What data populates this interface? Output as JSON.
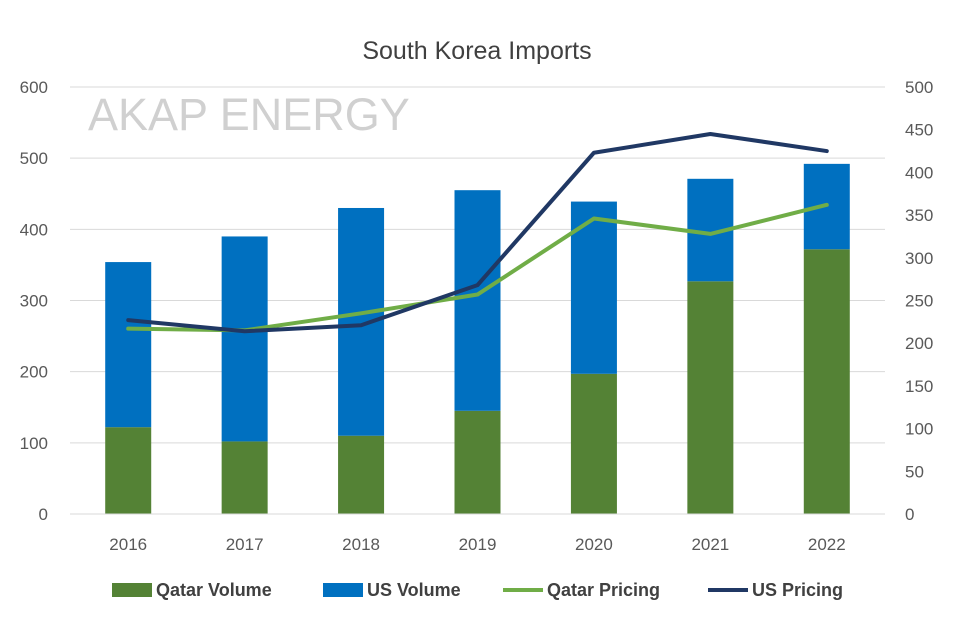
{
  "chart_data": {
    "type": "bar",
    "title": "South Korea Imports",
    "watermark": "AKAP ENERGY",
    "categories": [
      "2016",
      "2017",
      "2018",
      "2019",
      "2020",
      "2021",
      "2022"
    ],
    "ylim": [
      0,
      600
    ],
    "y_ticks": [
      "0",
      "100",
      "200",
      "300",
      "400",
      "500",
      "600"
    ],
    "y2lim": [
      0,
      500
    ],
    "y2_ticks": [
      "0",
      "50",
      "100",
      "150",
      "200",
      "250",
      "300",
      "350",
      "400",
      "450",
      "500"
    ],
    "bar_series": [
      {
        "name": "Qatar Volume",
        "color": "#548235",
        "values": [
          122,
          102,
          110,
          145,
          197,
          327,
          372
        ]
      },
      {
        "name": "US Volume",
        "color": "#0070c0",
        "values": [
          232,
          288,
          320,
          310,
          242,
          144,
          120
        ]
      }
    ],
    "line_series": [
      {
        "name": "Qatar Pricing",
        "color": "#70ad47",
        "axis": "secondary",
        "values": [
          217,
          215,
          235,
          257,
          346,
          328,
          362
        ]
      },
      {
        "name": "US Pricing",
        "color": "#203864",
        "axis": "secondary",
        "values": [
          227,
          214,
          221,
          268,
          423,
          445,
          425
        ]
      }
    ],
    "legend": [
      "Qatar Volume",
      "US Volume",
      "Qatar Pricing",
      "US Pricing"
    ],
    "legend_position": "bottom",
    "grid": true
  }
}
